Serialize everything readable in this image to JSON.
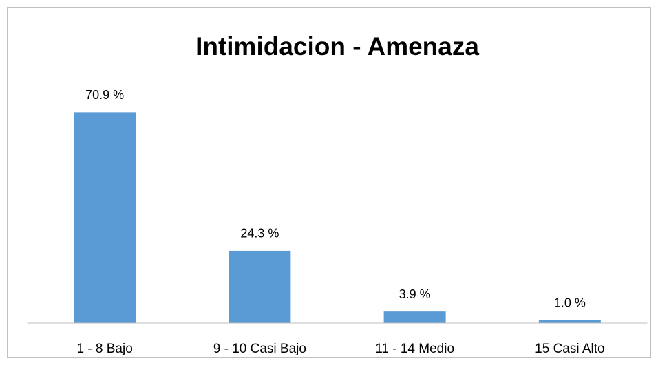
{
  "chart_data": {
    "type": "bar",
    "title": "Intimidacion - Amenaza",
    "categories": [
      "1 - 8 Bajo",
      "9 - 10 Casi Bajo",
      "11 - 14 Medio",
      "15 Casi Alto"
    ],
    "values": [
      70.9,
      24.3,
      3.9,
      1.0
    ],
    "value_labels": [
      "70.9 %",
      "24.3 %",
      "3.9 %",
      "1.0 %"
    ],
    "color": "#5b9bd5",
    "ylim": [
      0,
      80
    ]
  }
}
